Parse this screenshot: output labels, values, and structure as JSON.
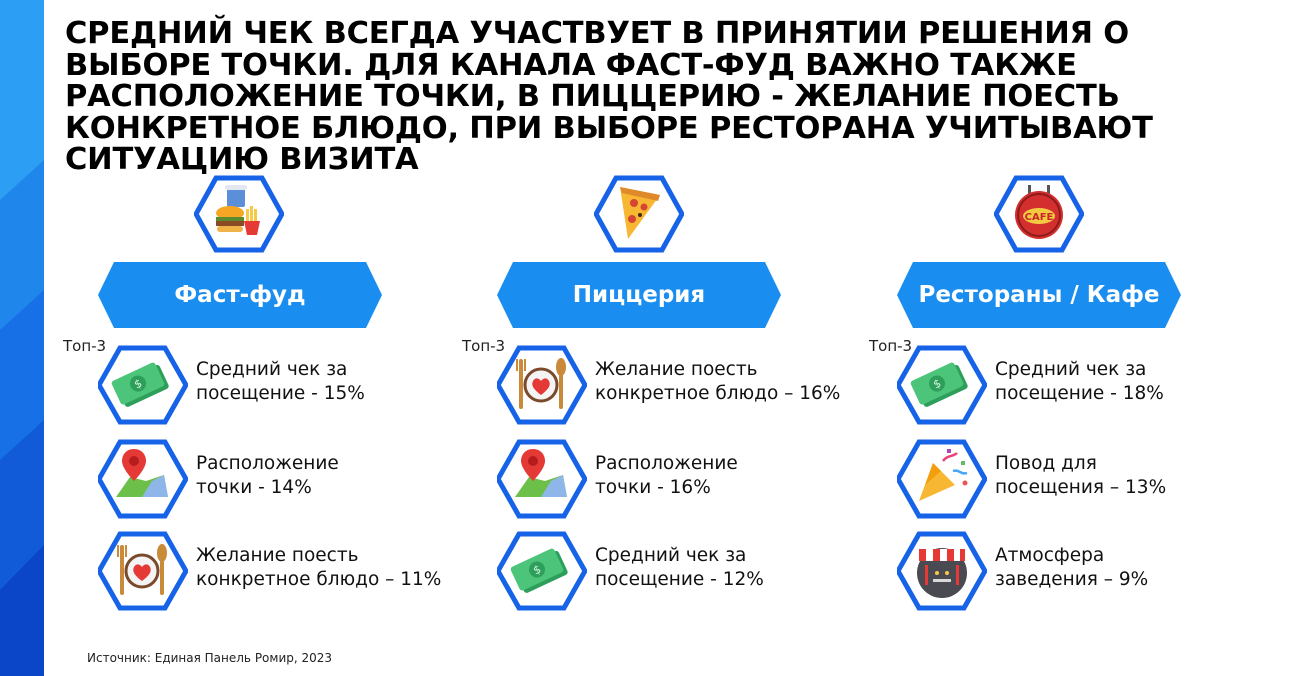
{
  "title": "СРЕДНИЙ ЧЕК ВСЕГДА УЧАСТВУЕТ В ПРИНЯТИИ РЕШЕНИЯ О ВЫБОРЕ ТОЧКИ. ДЛЯ КАНАЛА ФАСТ-ФУД ВАЖНО ТАКЖЕ РАСПОЛОЖЕНИЕ ТОЧКИ, В ПИЦЦЕРИЮ - ЖЕЛАНИЕ ПОЕСТЬ КОНКРЕТНОЕ БЛЮДО, ПРИ ВЫБОРЕ РЕСТОРАНА УЧИТЫВАЮТ СИТУАЦИЮ ВИЗИТА",
  "colors": {
    "accent": "#1a8ef0",
    "hex_border": "#1663e8",
    "sidebar_light": "#2fa4f5",
    "sidebar_dark": "#0b3fc8"
  },
  "columns": [
    {
      "name": "Фаст-фуд",
      "top_label": "Топ-3",
      "hero_icon": "burger-fries-icon",
      "factors": [
        {
          "text": "Средний чек за\nпосещение - 15%",
          "icon": "money-icon",
          "share_percent": 15
        },
        {
          "text": "Расположение\nточки - 14%",
          "icon": "map-pin-icon",
          "share_percent": 14
        },
        {
          "text": "Желание поесть\nконкретное блюдо – 11%",
          "icon": "plate-heart-icon",
          "share_percent": 11
        }
      ]
    },
    {
      "name": "Пиццерия",
      "top_label": "Топ-3",
      "hero_icon": "pizza-slice-icon",
      "factors": [
        {
          "text": "Желание поесть\nконкретное блюдо – 16%",
          "icon": "plate-heart-icon",
          "share_percent": 16
        },
        {
          "text": "Расположение\nточки - 16%",
          "icon": "map-pin-icon",
          "share_percent": 16
        },
        {
          "text": "Средний чек за\nпосещение - 12%",
          "icon": "money-icon",
          "share_percent": 12
        }
      ]
    },
    {
      "name": "Рестораны / Кафе",
      "top_label": "Топ-3",
      "hero_icon": "cafe-sign-icon",
      "hero_icon_text": "CAFE",
      "factors": [
        {
          "text": "Средний чек за\nпосещение - 18%",
          "icon": "money-icon",
          "share_percent": 18
        },
        {
          "text": "Повод для\nпосещения – 13%",
          "icon": "party-popper-icon",
          "share_percent": 13
        },
        {
          "text": "Атмосфера\nзаведения – 9%",
          "icon": "storefront-icon",
          "share_percent": 9
        }
      ]
    }
  ],
  "source": "Источник: Единая Панель Ромир, 2023"
}
